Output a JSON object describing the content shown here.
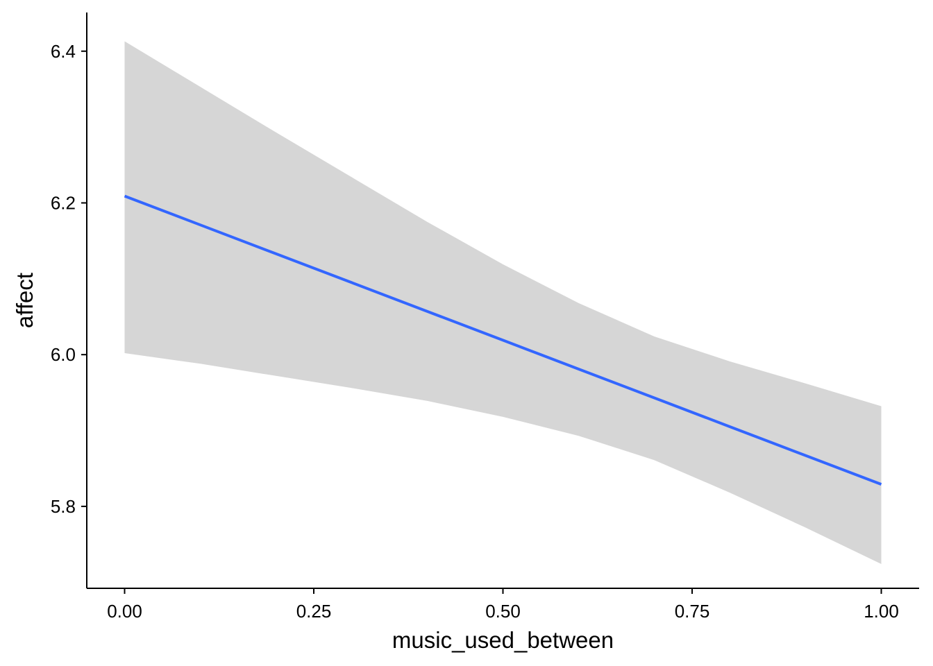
{
  "chart_data": {
    "type": "line",
    "title": "",
    "xlabel": "music_used_between",
    "ylabel": "affect",
    "xlim": [
      -0.05,
      1.05
    ],
    "ylim": [
      5.692,
      6.451
    ],
    "x_ticks": [
      0.0,
      0.25,
      0.5,
      0.75,
      1.0
    ],
    "x_tick_labels": [
      "0.00",
      "0.25",
      "0.50",
      "0.75",
      "1.00"
    ],
    "y_ticks": [
      5.8,
      6.0,
      6.2,
      6.4
    ],
    "y_tick_labels": [
      "5.8",
      "6.0",
      "6.2",
      "6.4"
    ],
    "grid": false,
    "legend": "none",
    "series": [
      {
        "x": [
          0.0,
          0.1,
          0.2,
          0.3,
          0.4,
          0.5,
          0.6,
          0.7,
          0.8,
          0.9,
          1.0
        ],
        "values": [
          6.209,
          6.171,
          6.133,
          6.095,
          6.057,
          6.019,
          5.981,
          5.943,
          5.905,
          5.867,
          5.829
        ],
        "lower": [
          6.002,
          5.988,
          5.972,
          5.956,
          5.939,
          5.918,
          5.893,
          5.861,
          5.818,
          5.772,
          5.724
        ],
        "upper": [
          6.413,
          6.353,
          6.293,
          6.234,
          6.175,
          6.119,
          6.068,
          6.024,
          5.991,
          5.962,
          5.932
        ],
        "color": "#3366ff",
        "band_color": "#d6d6d6"
      }
    ]
  }
}
